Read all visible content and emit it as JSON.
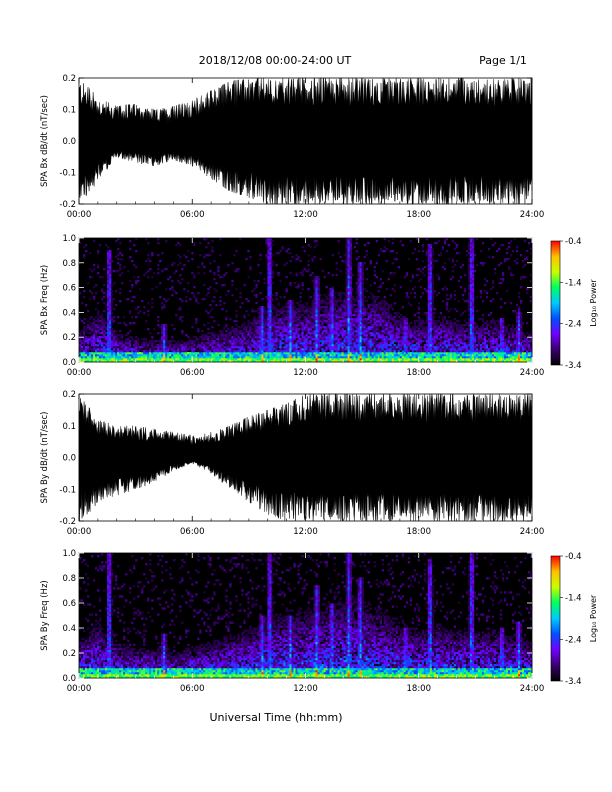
{
  "header": {
    "title": "2018/12/08  00:00-24:00 UT",
    "page": "Page 1/1"
  },
  "xlabel": "Universal Time (hh:mm)",
  "colorbar": {
    "label": "Log₁₀ Power",
    "ticks": [
      -0.4,
      -1.4,
      -2.4,
      -3.4
    ],
    "tick_labels": [
      "-0.4",
      "-1.4",
      "-2.4",
      "-3.4"
    ],
    "range": [
      -3.4,
      -0.4
    ],
    "colors": [
      "#000000",
      "#3a0070",
      "#7000ff",
      "#0050ff",
      "#00c8ff",
      "#00ff60",
      "#c8ff00",
      "#ffc000",
      "#ff0000"
    ]
  },
  "chart_data": [
    {
      "type": "area",
      "ylabel": "SPA Bx dB/dt (nT/sec)",
      "xlim": [
        0,
        24
      ],
      "ylim": [
        -0.2,
        0.2
      ],
      "x_ticks": [
        "00:00",
        "06:00",
        "12:00",
        "18:00",
        "24:00"
      ],
      "y_ticks": [
        -0.2,
        -0.1,
        0.0,
        0.1,
        0.2
      ],
      "y_tick_labels": [
        "-0.2",
        "-0.1",
        "0.0",
        "0.1",
        "0.2"
      ],
      "x_hours": [
        0,
        1,
        2,
        3,
        4,
        5,
        6,
        7,
        8,
        9,
        10,
        11,
        12,
        13,
        14,
        15,
        16,
        17,
        18,
        19,
        20,
        21,
        22,
        23,
        24
      ],
      "envelope_max": [
        0.2,
        0.14,
        0.11,
        0.12,
        0.1,
        0.11,
        0.13,
        0.16,
        0.19,
        0.2,
        0.2,
        0.2,
        0.2,
        0.2,
        0.2,
        0.2,
        0.2,
        0.2,
        0.2,
        0.2,
        0.2,
        0.2,
        0.2,
        0.2,
        0.2
      ],
      "envelope_min": [
        -0.2,
        -0.13,
        -0.05,
        -0.07,
        -0.08,
        -0.06,
        -0.08,
        -0.12,
        -0.16,
        -0.18,
        -0.2,
        -0.2,
        -0.2,
        -0.2,
        -0.2,
        -0.2,
        -0.2,
        -0.2,
        -0.2,
        -0.2,
        -0.2,
        -0.2,
        -0.2,
        -0.2,
        -0.2
      ]
    },
    {
      "type": "heatmap",
      "ylabel": "SPA Bx Freq (Hz)",
      "xlim": [
        0,
        24
      ],
      "ylim": [
        0,
        1.0
      ],
      "x_ticks": [
        "00:00",
        "06:00",
        "12:00",
        "18:00",
        "24:00"
      ],
      "y_ticks": [
        0.0,
        0.2,
        0.4,
        0.6,
        0.8,
        1.0
      ],
      "y_tick_labels": [
        "0.0",
        "0.2",
        "0.4",
        "0.6",
        "0.8",
        "1.0"
      ],
      "activity_hours": [
        1.6,
        4.5,
        9.7,
        10.1,
        11.2,
        12.6,
        13.4,
        14.3,
        14.9,
        17.3,
        18.6,
        20.8,
        22.4,
        23.3
      ],
      "activity_height_hz": [
        0.9,
        0.3,
        0.45,
        1.0,
        0.5,
        0.7,
        0.6,
        1.0,
        0.8,
        0.35,
        0.95,
        1.0,
        0.35,
        0.4
      ],
      "broadband_hz_max": [
        0.25,
        0.45,
        0.25,
        0.2,
        0.2,
        0.18,
        0.2,
        0.25,
        0.3,
        0.35,
        0.45,
        0.5,
        0.5,
        0.55,
        0.6,
        0.6,
        0.55,
        0.4,
        0.35,
        0.4,
        0.35,
        0.35,
        0.35,
        0.3,
        0.25
      ]
    },
    {
      "type": "area",
      "ylabel": "SPA By dB/dt (nT/sec)",
      "xlim": [
        0,
        24
      ],
      "ylim": [
        -0.2,
        0.2
      ],
      "x_ticks": [
        "00:00",
        "06:00",
        "12:00",
        "18:00",
        "24:00"
      ],
      "y_ticks": [
        -0.2,
        -0.1,
        0.0,
        0.1,
        0.2
      ],
      "y_tick_labels": [
        "-0.2",
        "-0.1",
        "0.0",
        "0.1",
        "0.2"
      ],
      "x_hours": [
        0,
        1,
        2,
        3,
        4,
        5,
        6,
        7,
        8,
        9,
        10,
        11,
        12,
        13,
        14,
        15,
        16,
        17,
        18,
        19,
        20,
        21,
        22,
        23,
        24
      ],
      "envelope_max": [
        0.2,
        0.12,
        0.1,
        0.1,
        0.09,
        0.08,
        0.07,
        0.08,
        0.1,
        0.13,
        0.15,
        0.17,
        0.2,
        0.2,
        0.2,
        0.2,
        0.2,
        0.2,
        0.2,
        0.2,
        0.2,
        0.2,
        0.2,
        0.2,
        0.2
      ],
      "envelope_min": [
        -0.2,
        -0.15,
        -0.12,
        -0.1,
        -0.08,
        -0.04,
        -0.02,
        -0.05,
        -0.1,
        -0.14,
        -0.18,
        -0.2,
        -0.2,
        -0.2,
        -0.2,
        -0.2,
        -0.2,
        -0.2,
        -0.2,
        -0.2,
        -0.2,
        -0.2,
        -0.2,
        -0.2,
        -0.2
      ]
    },
    {
      "type": "heatmap",
      "ylabel": "SPA By Freq (Hz)",
      "xlim": [
        0,
        24
      ],
      "ylim": [
        0,
        1.0
      ],
      "x_ticks": [
        "00:00",
        "06:00",
        "12:00",
        "18:00",
        "24:00"
      ],
      "y_ticks": [
        0.0,
        0.2,
        0.4,
        0.6,
        0.8,
        1.0
      ],
      "y_tick_labels": [
        "0.0",
        "0.2",
        "0.4",
        "0.6",
        "0.8",
        "1.0"
      ],
      "activity_hours": [
        1.6,
        4.5,
        9.7,
        10.1,
        11.2,
        12.6,
        13.4,
        14.3,
        14.9,
        17.3,
        18.6,
        20.8,
        22.4,
        23.3
      ],
      "activity_height_hz": [
        1.0,
        0.35,
        0.5,
        1.0,
        0.5,
        0.75,
        0.6,
        1.0,
        0.8,
        0.4,
        0.95,
        1.0,
        0.4,
        0.45
      ],
      "broadband_hz_max": [
        0.3,
        0.45,
        0.3,
        0.25,
        0.25,
        0.2,
        0.25,
        0.3,
        0.35,
        0.4,
        0.5,
        0.55,
        0.55,
        0.6,
        0.65,
        0.65,
        0.55,
        0.45,
        0.4,
        0.45,
        0.4,
        0.4,
        0.4,
        0.35,
        0.3
      ]
    }
  ]
}
